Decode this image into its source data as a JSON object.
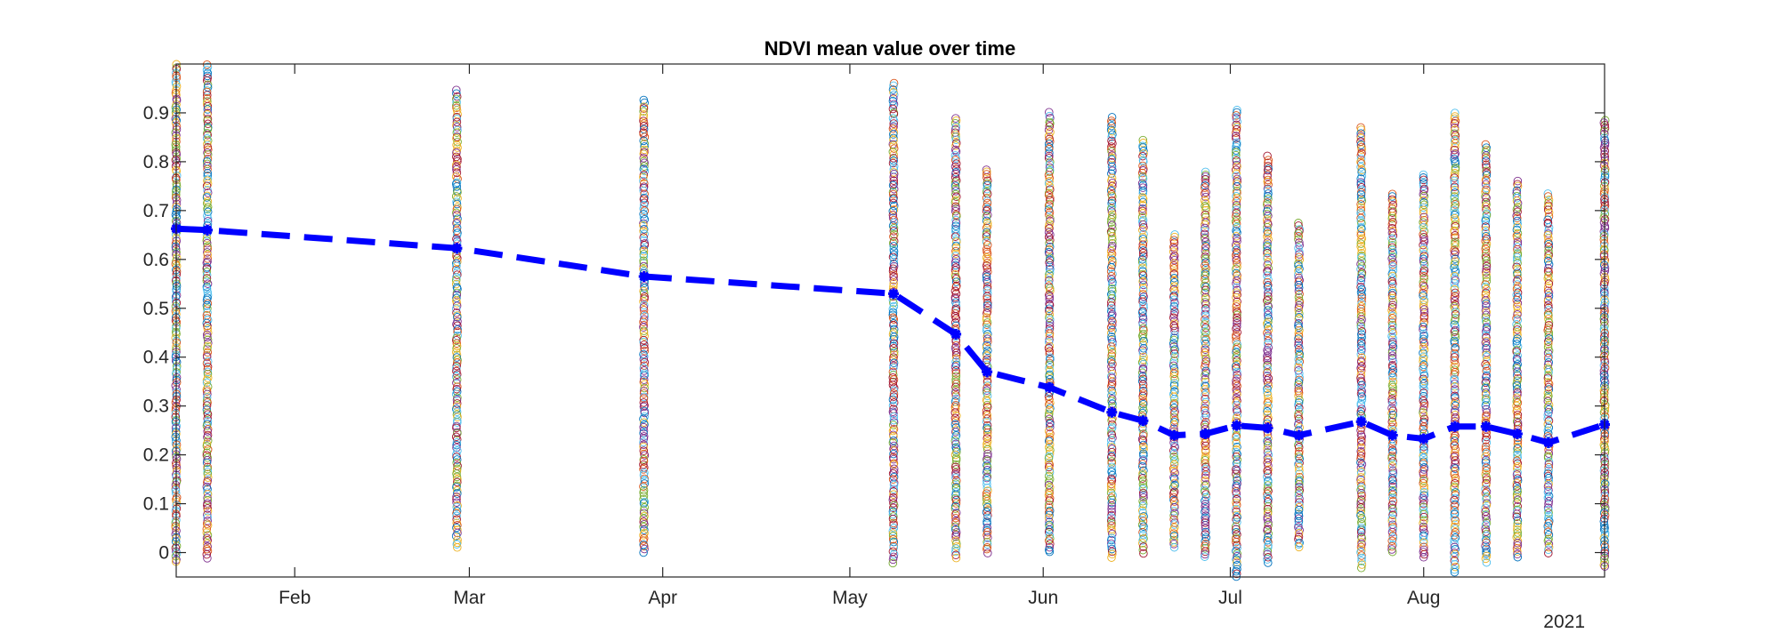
{
  "chart_data": {
    "type": "scatter",
    "title": "NDVI mean value over time",
    "xlabel": "",
    "ylabel": "",
    "x_year_label": "2021",
    "xlim": [
      "2021-01-13",
      "2021-08-30"
    ],
    "ylim": [
      -0.05,
      1.0
    ],
    "x_ticks": [
      {
        "date": "2021-02-01",
        "label": "Feb"
      },
      {
        "date": "2021-03-01",
        "label": "Mar"
      },
      {
        "date": "2021-04-01",
        "label": "Apr"
      },
      {
        "date": "2021-05-01",
        "label": "May"
      },
      {
        "date": "2021-06-01",
        "label": "Jun"
      },
      {
        "date": "2021-07-01",
        "label": "Jul"
      },
      {
        "date": "2021-08-01",
        "label": "Aug"
      }
    ],
    "y_ticks": [
      {
        "value": 0,
        "label": "0"
      },
      {
        "value": 0.1,
        "label": "0.1"
      },
      {
        "value": 0.2,
        "label": "0.2"
      },
      {
        "value": 0.3,
        "label": "0.3"
      },
      {
        "value": 0.4,
        "label": "0.4"
      },
      {
        "value": 0.5,
        "label": "0.5"
      },
      {
        "value": 0.6,
        "label": "0.6"
      },
      {
        "value": 0.7,
        "label": "0.7"
      },
      {
        "value": 0.8,
        "label": "0.8"
      },
      {
        "value": 0.9,
        "label": "0.9"
      }
    ],
    "grid": false,
    "mean_series": {
      "color": "#0000ff",
      "line_style": "dashed",
      "marker": "asterisk",
      "points": [
        {
          "x": "2021-01-13",
          "y": 0.663
        },
        {
          "x": "2021-01-18",
          "y": 0.66
        },
        {
          "x": "2021-02-27",
          "y": 0.623
        },
        {
          "x": "2021-03-29",
          "y": 0.565
        },
        {
          "x": "2021-05-08",
          "y": 0.53
        },
        {
          "x": "2021-05-18",
          "y": 0.447
        },
        {
          "x": "2021-05-23",
          "y": 0.37
        },
        {
          "x": "2021-06-02",
          "y": 0.338
        },
        {
          "x": "2021-06-12",
          "y": 0.287
        },
        {
          "x": "2021-06-17",
          "y": 0.27
        },
        {
          "x": "2021-06-22",
          "y": 0.24
        },
        {
          "x": "2021-06-27",
          "y": 0.243
        },
        {
          "x": "2021-07-02",
          "y": 0.26
        },
        {
          "x": "2021-07-07",
          "y": 0.255
        },
        {
          "x": "2021-07-12",
          "y": 0.24
        },
        {
          "x": "2021-07-22",
          "y": 0.268
        },
        {
          "x": "2021-07-27",
          "y": 0.24
        },
        {
          "x": "2021-08-01",
          "y": 0.233
        },
        {
          "x": "2021-08-06",
          "y": 0.258
        },
        {
          "x": "2021-08-11",
          "y": 0.258
        },
        {
          "x": "2021-08-16",
          "y": 0.243
        },
        {
          "x": "2021-08-21",
          "y": 0.225
        },
        {
          "x": "2021-08-30",
          "y": 0.262
        }
      ]
    },
    "pixel_scatter": {
      "marker": "open-circle",
      "colors": [
        "#0072bd",
        "#d95319",
        "#edb120",
        "#7e2f8e",
        "#77ac30",
        "#4dbeee",
        "#a2142f"
      ],
      "columns": [
        {
          "x": "2021-01-13",
          "ymin": -0.02,
          "ymax": 1.0
        },
        {
          "x": "2021-01-18",
          "ymin": -0.01,
          "ymax": 1.0
        },
        {
          "x": "2021-02-27",
          "ymin": 0.01,
          "ymax": 0.945
        },
        {
          "x": "2021-03-29",
          "ymin": 0.0,
          "ymax": 0.925
        },
        {
          "x": "2021-05-08",
          "ymin": -0.02,
          "ymax": 0.96
        },
        {
          "x": "2021-05-18",
          "ymin": -0.01,
          "ymax": 0.89
        },
        {
          "x": "2021-05-23",
          "ymin": 0.0,
          "ymax": 0.785
        },
        {
          "x": "2021-06-02",
          "ymin": 0.0,
          "ymax": 0.9
        },
        {
          "x": "2021-06-12",
          "ymin": -0.01,
          "ymax": 0.89
        },
        {
          "x": "2021-06-17",
          "ymin": 0.0,
          "ymax": 0.845
        },
        {
          "x": "2021-06-22",
          "ymin": 0.01,
          "ymax": 0.65
        },
        {
          "x": "2021-06-27",
          "ymin": -0.01,
          "ymax": 0.78
        },
        {
          "x": "2021-07-02",
          "ymin": -0.05,
          "ymax": 0.905
        },
        {
          "x": "2021-07-07",
          "ymin": -0.02,
          "ymax": 0.81
        },
        {
          "x": "2021-07-12",
          "ymin": 0.01,
          "ymax": 0.675
        },
        {
          "x": "2021-07-22",
          "ymin": -0.03,
          "ymax": 0.87
        },
        {
          "x": "2021-07-27",
          "ymin": 0.0,
          "ymax": 0.735
        },
        {
          "x": "2021-08-01",
          "ymin": -0.01,
          "ymax": 0.775
        },
        {
          "x": "2021-08-06",
          "ymin": -0.04,
          "ymax": 0.9
        },
        {
          "x": "2021-08-11",
          "ymin": -0.02,
          "ymax": 0.835
        },
        {
          "x": "2021-08-16",
          "ymin": -0.01,
          "ymax": 0.76
        },
        {
          "x": "2021-08-21",
          "ymin": 0.0,
          "ymax": 0.735
        },
        {
          "x": "2021-08-30",
          "ymin": -0.03,
          "ymax": 0.885
        }
      ]
    }
  }
}
